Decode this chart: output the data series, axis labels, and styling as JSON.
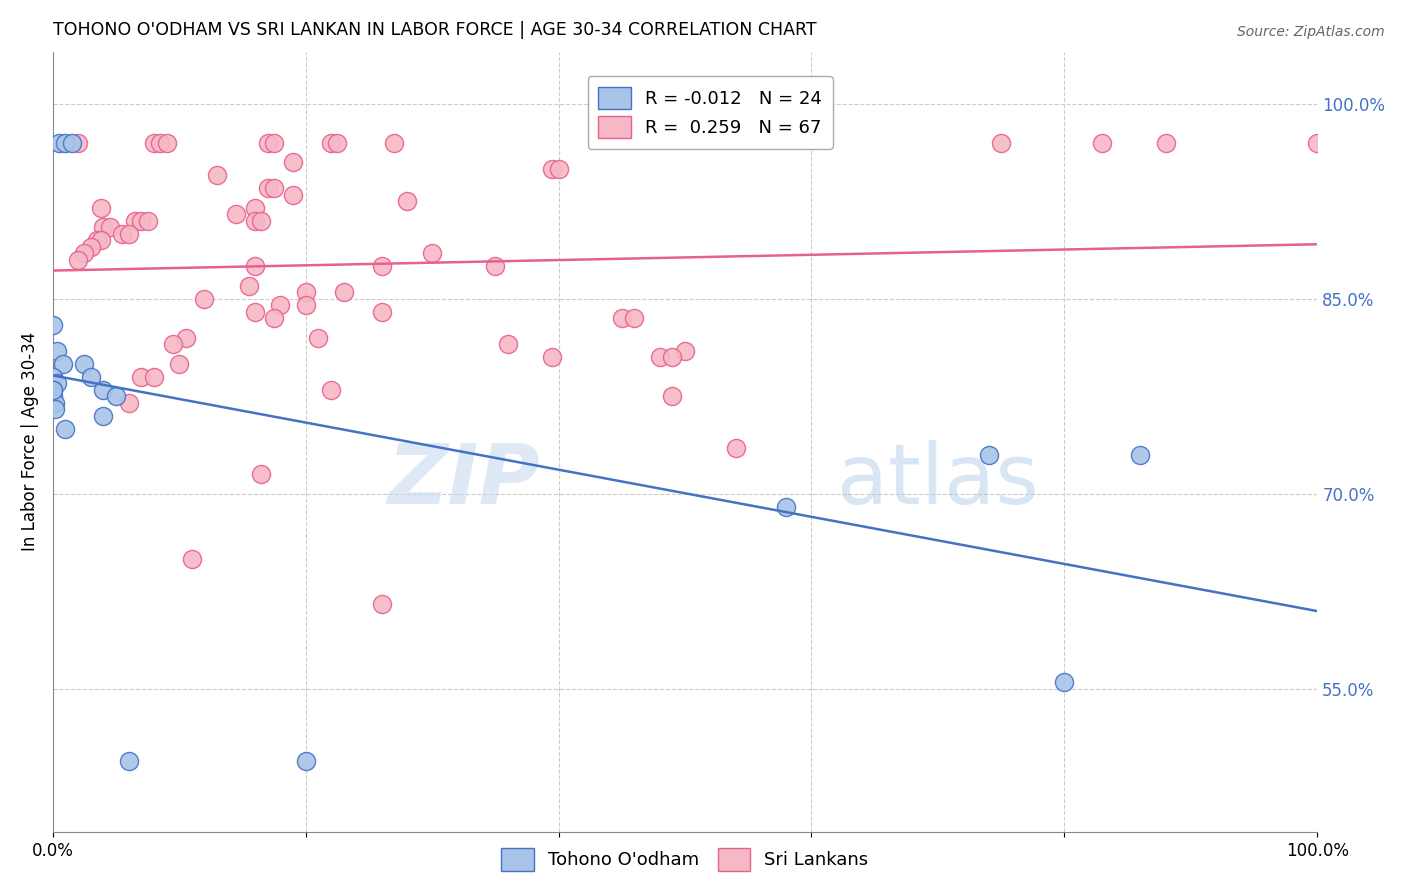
{
  "title": "TOHONO O'ODHAM VS SRI LANKAN IN LABOR FORCE | AGE 30-34 CORRELATION CHART",
  "source": "Source: ZipAtlas.com",
  "ylabel": "In Labor Force | Age 30-34",
  "watermark_zip": "ZIP",
  "watermark_atlas": "atlas",
  "xlim": [
    0.0,
    1.0
  ],
  "ylim": [
    0.44,
    1.04
  ],
  "right_yticks": [
    0.55,
    0.7,
    0.85,
    1.0
  ],
  "right_yticklabels": [
    "55.0%",
    "70.0%",
    "85.0%",
    "100.0%"
  ],
  "blue_R": "-0.012",
  "blue_N": "24",
  "pink_R": "0.259",
  "pink_N": "67",
  "blue_color": "#a8c4e8",
  "pink_color": "#f5b8c4",
  "blue_edge_color": "#4472c4",
  "pink_edge_color": "#e86090",
  "blue_line_color": "#4472c4",
  "pink_line_color": "#e86090",
  "blue_label": "Tohono O'odham",
  "pink_label": "Sri Lankans",
  "blue_points": [
    [
      0.005,
      0.97
    ],
    [
      0.01,
      0.97
    ],
    [
      0.015,
      0.97
    ],
    [
      0.0,
      0.83
    ],
    [
      0.003,
      0.81
    ],
    [
      0.008,
      0.8
    ],
    [
      0.025,
      0.8
    ],
    [
      0.0,
      0.79
    ],
    [
      0.003,
      0.785
    ],
    [
      0.0,
      0.78
    ],
    [
      0.0,
      0.775
    ],
    [
      0.002,
      0.77
    ],
    [
      0.002,
      0.765
    ],
    [
      0.04,
      0.76
    ],
    [
      0.01,
      0.75
    ],
    [
      0.04,
      0.78
    ],
    [
      0.05,
      0.775
    ],
    [
      0.03,
      0.79
    ],
    [
      0.0,
      0.78
    ],
    [
      0.58,
      0.69
    ],
    [
      0.74,
      0.73
    ],
    [
      0.86,
      0.73
    ],
    [
      0.8,
      0.555
    ],
    [
      0.06,
      0.495
    ],
    [
      0.2,
      0.495
    ]
  ],
  "pink_points": [
    [
      0.02,
      0.97
    ],
    [
      0.08,
      0.97
    ],
    [
      0.085,
      0.97
    ],
    [
      0.09,
      0.97
    ],
    [
      0.17,
      0.97
    ],
    [
      0.175,
      0.97
    ],
    [
      0.22,
      0.97
    ],
    [
      0.225,
      0.97
    ],
    [
      0.27,
      0.97
    ],
    [
      0.83,
      0.97
    ],
    [
      0.88,
      0.97
    ],
    [
      1.0,
      0.97
    ],
    [
      0.19,
      0.955
    ],
    [
      0.395,
      0.95
    ],
    [
      0.4,
      0.95
    ],
    [
      0.13,
      0.945
    ],
    [
      0.17,
      0.935
    ],
    [
      0.175,
      0.935
    ],
    [
      0.19,
      0.93
    ],
    [
      0.16,
      0.92
    ],
    [
      0.038,
      0.92
    ],
    [
      0.28,
      0.925
    ],
    [
      0.145,
      0.915
    ],
    [
      0.16,
      0.91
    ],
    [
      0.165,
      0.91
    ],
    [
      0.065,
      0.91
    ],
    [
      0.07,
      0.91
    ],
    [
      0.075,
      0.91
    ],
    [
      0.04,
      0.905
    ],
    [
      0.045,
      0.905
    ],
    [
      0.055,
      0.9
    ],
    [
      0.06,
      0.9
    ],
    [
      0.035,
      0.895
    ],
    [
      0.038,
      0.895
    ],
    [
      0.03,
      0.89
    ],
    [
      0.025,
      0.885
    ],
    [
      0.3,
      0.885
    ],
    [
      0.02,
      0.88
    ],
    [
      0.16,
      0.875
    ],
    [
      0.26,
      0.875
    ],
    [
      0.35,
      0.875
    ],
    [
      0.155,
      0.86
    ],
    [
      0.2,
      0.855
    ],
    [
      0.23,
      0.855
    ],
    [
      0.12,
      0.85
    ],
    [
      0.18,
      0.845
    ],
    [
      0.2,
      0.845
    ],
    [
      0.16,
      0.84
    ],
    [
      0.26,
      0.84
    ],
    [
      0.175,
      0.835
    ],
    [
      0.45,
      0.835
    ],
    [
      0.46,
      0.835
    ],
    [
      0.21,
      0.82
    ],
    [
      0.105,
      0.82
    ],
    [
      0.095,
      0.815
    ],
    [
      0.36,
      0.815
    ],
    [
      0.5,
      0.81
    ],
    [
      0.48,
      0.805
    ],
    [
      0.49,
      0.805
    ],
    [
      0.1,
      0.8
    ],
    [
      0.22,
      0.78
    ],
    [
      0.07,
      0.79
    ],
    [
      0.08,
      0.79
    ],
    [
      0.49,
      0.775
    ],
    [
      0.06,
      0.77
    ],
    [
      0.54,
      0.735
    ],
    [
      0.165,
      0.715
    ],
    [
      0.11,
      0.65
    ],
    [
      0.26,
      0.615
    ],
    [
      0.75,
      0.97
    ],
    [
      0.395,
      0.805
    ]
  ]
}
